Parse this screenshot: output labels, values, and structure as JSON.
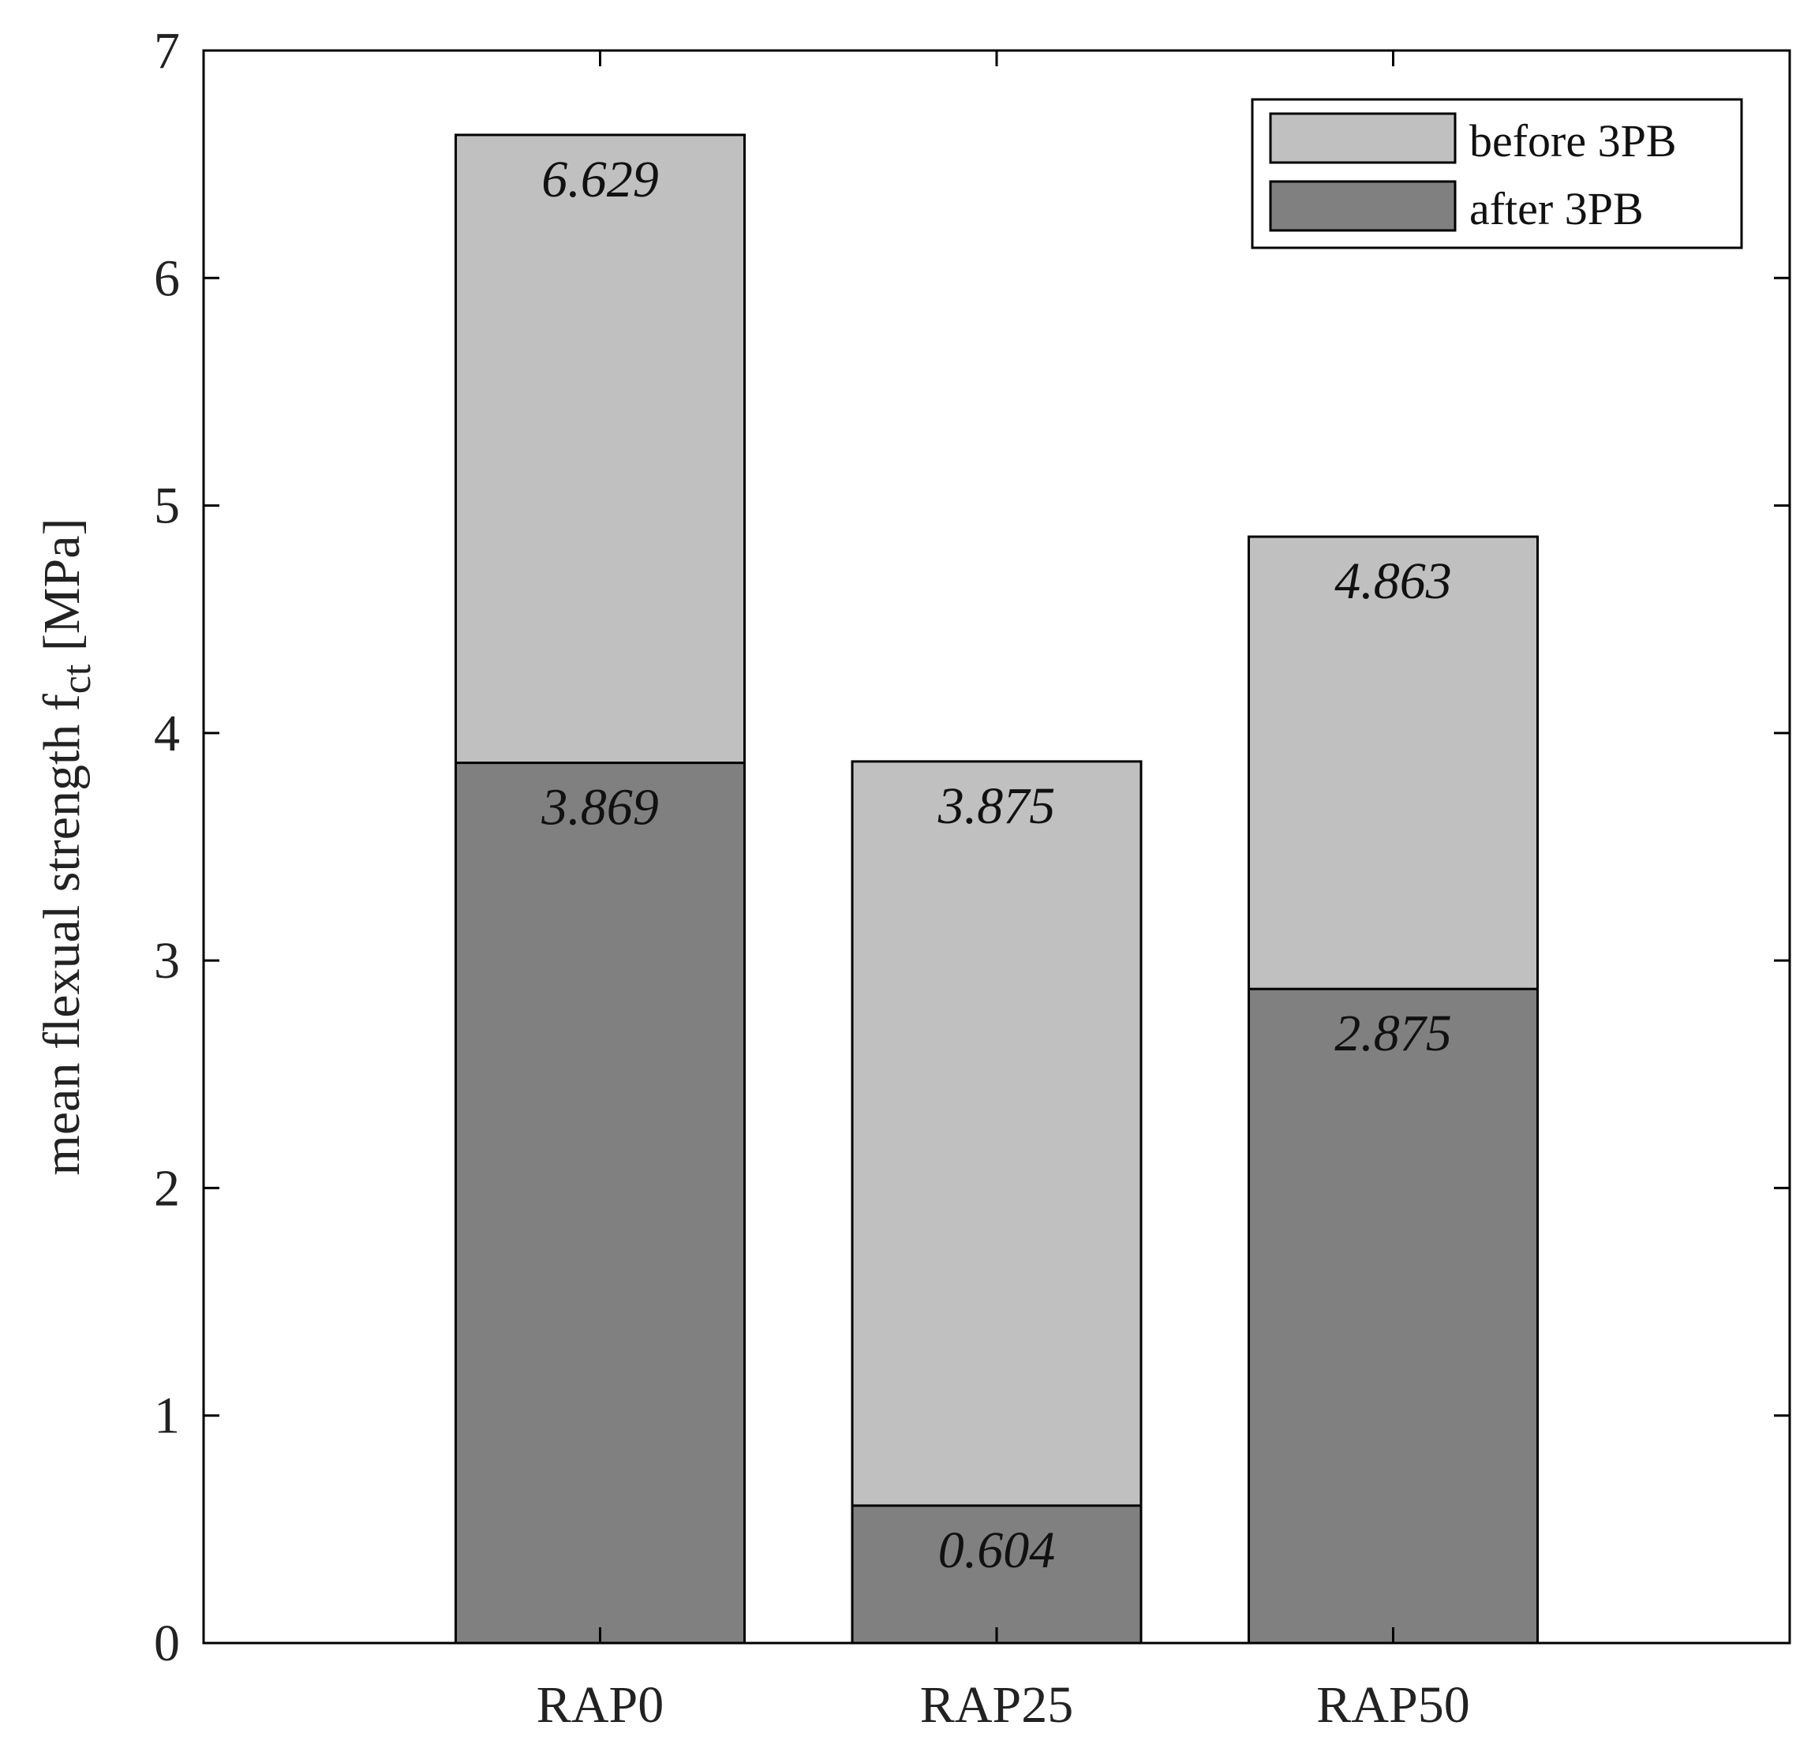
{
  "chart_data": {
    "type": "bar",
    "stacked": "overlay",
    "categories": [
      "RAP0",
      "RAP25",
      "RAP50"
    ],
    "series": [
      {
        "name": "before 3PB",
        "color": "#c0c0c0",
        "values": [
          6.629,
          3.875,
          4.863
        ],
        "labels": [
          "6.629",
          "3.875",
          "4.863"
        ]
      },
      {
        "name": "after 3PB",
        "color": "#808080",
        "values": [
          3.869,
          0.604,
          2.875
        ],
        "labels": [
          "3.869",
          "0.604",
          "2.875"
        ]
      }
    ],
    "ylabel": "mean flexual strength f",
    "ylabel_subscript": "ct",
    "ylabel_unit": "[MPa]",
    "xlabel": "",
    "title": "",
    "ylim": [
      0,
      7
    ],
    "yticks": [
      "0",
      "1",
      "2",
      "3",
      "4",
      "5",
      "6",
      "7"
    ],
    "xlim_categories": [
      "",
      "RAP0",
      "RAP25",
      "RAP50",
      ""
    ],
    "legend_position": "top-right",
    "grid": false
  }
}
